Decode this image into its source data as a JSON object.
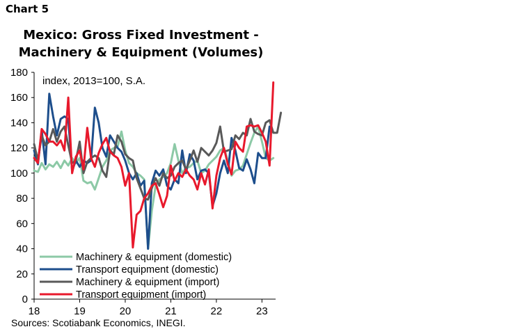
{
  "header": {
    "chart_label": "Chart 5"
  },
  "source": "Sources: Scotiabank Economics, INEGI.",
  "colors": {
    "machinery_domestic": "#8cc9a6",
    "transport_domestic": "#1d4e8c",
    "machinery_import": "#595959",
    "transport_import": "#e8192c"
  },
  "chart_data": {
    "type": "line",
    "title": "Mexico: Gross Fixed Investment - Machinery & Equipment (Volumes)",
    "title_lines": [
      "Mexico: Gross Fixed Investment -",
      "Machinery & Equipment (Volumes)"
    ],
    "annotation": "index, 2013=100, S.A.",
    "xlabel": "",
    "ylabel": "",
    "ylim": [
      0,
      180
    ],
    "yticks": [
      0,
      20,
      40,
      60,
      80,
      100,
      120,
      140,
      160,
      180
    ],
    "xlim": [
      2018,
      2023.3
    ],
    "xticks": [
      {
        "value": 2018,
        "label": "18"
      },
      {
        "value": 2019,
        "label": "19"
      },
      {
        "value": 2020,
        "label": "20"
      },
      {
        "value": 2021,
        "label": "21"
      },
      {
        "value": 2022,
        "label": "22"
      },
      {
        "value": 2023,
        "label": "23"
      }
    ],
    "legend_position": "bottom-left",
    "x_start": "2018-01",
    "frequency": "monthly",
    "series": [
      {
        "name": "Machinery & equipment (domestic)",
        "color": "#8cc9a6",
        "values": [
          102,
          101,
          108,
          103,
          107,
          105,
          109,
          104,
          110,
          106,
          112,
          108,
          112,
          94,
          92,
          93,
          87,
          96,
          105,
          110,
          118,
          120,
          121,
          133,
          118,
          108,
          105,
          100,
          98,
          95,
          40,
          70,
          90,
          95,
          97,
          100,
          108,
          123,
          110,
          100,
          104,
          105,
          108,
          110,
          100,
          102,
          107,
          110,
          113,
          118,
          120,
          110,
          98,
          102,
          103,
          106,
          115,
          124,
          132,
          137,
          125,
          112,
          110,
          112
        ]
      },
      {
        "name": "Transport equipment (domestic)",
        "color": "#1d4e8c",
        "values": [
          118,
          107,
          134,
          107,
          163,
          145,
          130,
          143,
          145,
          143,
          102,
          110,
          105,
          110,
          108,
          110,
          152,
          140,
          120,
          113,
          130,
          125,
          120,
          117,
          110,
          100,
          95,
          100,
          90,
          94,
          40,
          92,
          102,
          98,
          103,
          90,
          87,
          95,
          92,
          118,
          100,
          115,
          110,
          95,
          102,
          103,
          100,
          74,
          84,
          100,
          110,
          100,
          128,
          118,
          104,
          102,
          111,
          103,
          92,
          116,
          112,
          112,
          137
        ]
      },
      {
        "name": "Machinery & equipment (import)",
        "color": "#595959",
        "values": [
          123,
          110,
          130,
          122,
          125,
          135,
          125,
          133,
          137,
          122,
          108,
          110,
          125,
          100,
          109,
          112,
          114,
          112,
          102,
          97,
          118,
          115,
          130,
          125,
          115,
          112,
          110,
          96,
          88,
          80,
          79,
          88,
          96,
          90,
          100,
          96,
          98,
          105,
          108,
          110,
          103,
          110,
          118,
          109,
          120,
          117,
          114,
          118,
          124,
          137,
          117,
          118,
          119,
          130,
          127,
          132,
          130,
          143,
          133,
          131,
          130,
          140,
          142,
          132,
          132,
          148
        ]
      },
      {
        "name": "Transport equipment (import)",
        "color": "#e8192c",
        "values": [
          112,
          108,
          135,
          131,
          125,
          125,
          122,
          126,
          118,
          160,
          100,
          113,
          118,
          103,
          136,
          112,
          105,
          116,
          123,
          128,
          117,
          114,
          112,
          105,
          90,
          100,
          41,
          67,
          70,
          80,
          84,
          90,
          92,
          83,
          73,
          82,
          106,
          94,
          100,
          97,
          103,
          98,
          95,
          87,
          100,
          91,
          103,
          72,
          98,
          112,
          120,
          107,
          99,
          125,
          120,
          117,
          137,
          138,
          137,
          138,
          132,
          125,
          106,
          172
        ]
      }
    ]
  }
}
